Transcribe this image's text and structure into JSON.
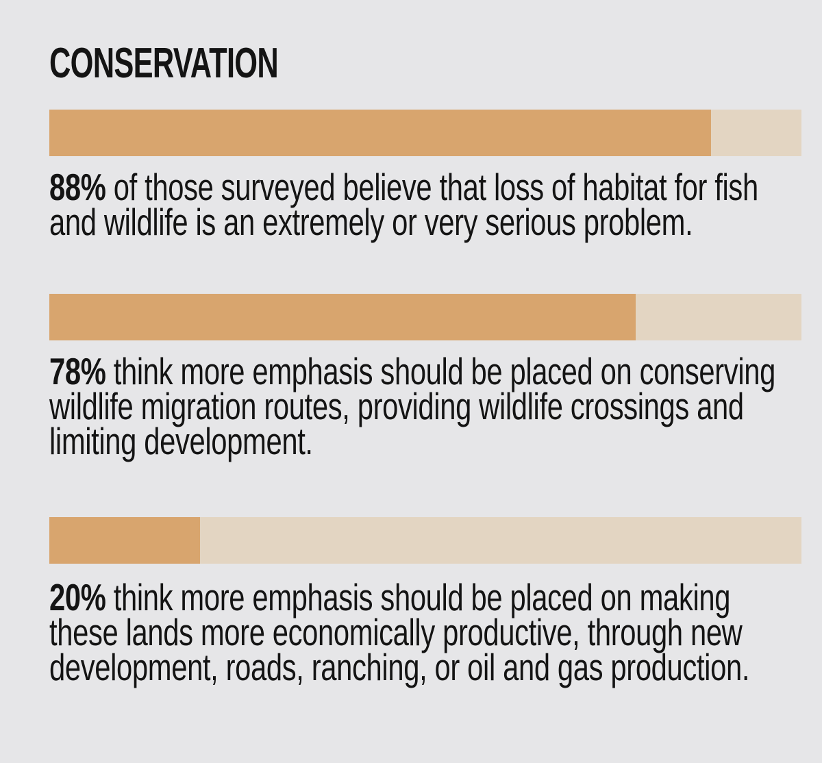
{
  "page": {
    "background_color": "#e6e6e8",
    "text_color": "#141414",
    "title": "CONSERVATION"
  },
  "bars": {
    "fill_color": "#d8a56e",
    "track_color": "#e3d5c2"
  },
  "stats": [
    {
      "pct": "88%",
      "value": 88,
      "text": "of those surveyed believe that loss of habitat for fish and wildlife is an extremely or very serious problem."
    },
    {
      "pct": "78%",
      "value": 78,
      "text": "think more emphasis should be placed on conserving wildlife migration routes, providing wildlife crossings and limiting development."
    },
    {
      "pct": "20%",
      "value": 20,
      "text": "think more emphasis should be placed on making these lands more economically productive, through new development, roads, ranching, or oil and gas production."
    }
  ],
  "chart_data": {
    "type": "bar",
    "orientation": "horizontal",
    "title": "CONSERVATION",
    "categories": [
      "88% of those surveyed believe that loss of habitat for fish and wildlife is an extremely or very serious problem.",
      "78% think more emphasis should be placed on conserving wildlife migration routes, providing wildlife crossings and limiting development.",
      "20% think more emphasis should be placed on making these lands more economically productive, through new development, roads, ranching, or oil and gas production."
    ],
    "values": [
      88,
      78,
      20
    ],
    "value_unit": "%",
    "xlim": [
      0,
      100
    ],
    "bar_color": "#d8a56e",
    "track_color": "#e3d5c2",
    "grid": false,
    "legend": "none",
    "axis_labels": "none"
  }
}
